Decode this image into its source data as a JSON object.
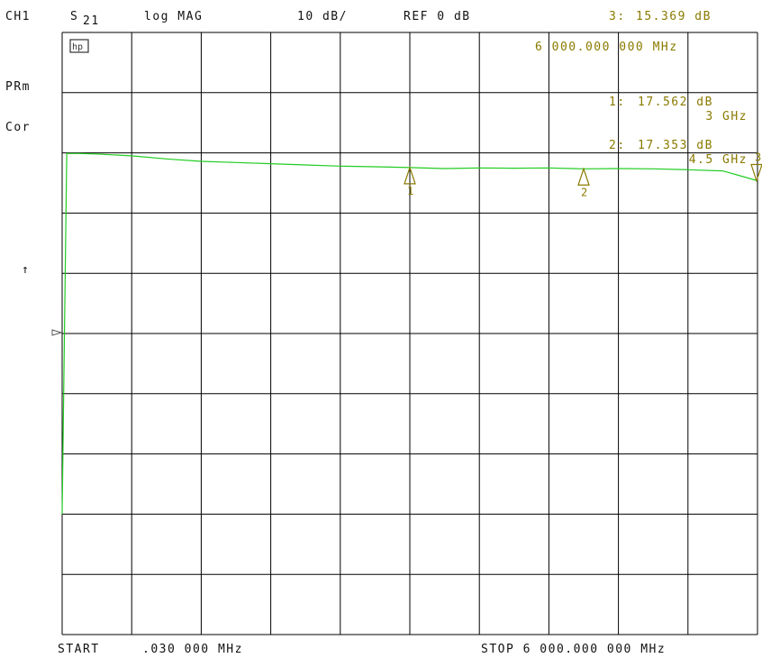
{
  "header": {
    "channel": "CH1",
    "param_s": "S",
    "param_sub": "21",
    "format": "log MAG",
    "scale": "10 dB/",
    "reference": "REF 0 dB"
  },
  "left_annotations": {
    "prm": "PRm",
    "cor": "Cor",
    "arrow": "↑"
  },
  "hp_logo": "hp",
  "active_marker": {
    "index_label": "3:",
    "value": "15.369 dB",
    "frequency": "6 000.000 000 MHz"
  },
  "marker_readouts": [
    {
      "index_label": "1:",
      "value": "17.562 dB",
      "frequency": "3 GHz"
    },
    {
      "index_label": "2:",
      "value": "17.353 dB",
      "frequency": "4.5 GHz"
    }
  ],
  "footer": {
    "start_label": "START",
    "start_value": ".030 000 MHz",
    "stop_text": "STOP 6 000.000 000 MHz"
  },
  "colors": {
    "trace": "#22cc22",
    "marker": "#8a7a00",
    "grid": "#000000",
    "text": "#111111"
  },
  "chart_data": {
    "type": "line",
    "x_unit": "MHz",
    "y_unit": "dB",
    "xlim": [
      0.03,
      6000
    ],
    "ylim": [
      -60,
      40
    ],
    "y_per_division": 10,
    "reference_level": 0,
    "grid": true,
    "series": [
      {
        "x": [
          0.03,
          40,
          150,
          300,
          600,
          900,
          1200,
          1500,
          1800,
          2100,
          2400,
          2700,
          3000,
          3300,
          3600,
          3900,
          4200,
          4500,
          4800,
          5100,
          5400,
          5700,
          5850,
          6000
        ],
        "y": [
          -40,
          19.9,
          19.9,
          19.8,
          19.5,
          19.0,
          18.6,
          18.4,
          18.2,
          18.0,
          17.8,
          17.7,
          17.56,
          17.4,
          17.5,
          17.45,
          17.5,
          17.35,
          17.4,
          17.35,
          17.2,
          17.0,
          16.2,
          15.369
        ]
      }
    ],
    "markers": [
      {
        "label": "1",
        "x": 3000,
        "y": 17.562,
        "direction": "up"
      },
      {
        "label": "2",
        "x": 4500,
        "y": 17.353,
        "direction": "up"
      },
      {
        "label": "3",
        "x": 6000,
        "y": 15.369,
        "direction": "down"
      }
    ]
  }
}
